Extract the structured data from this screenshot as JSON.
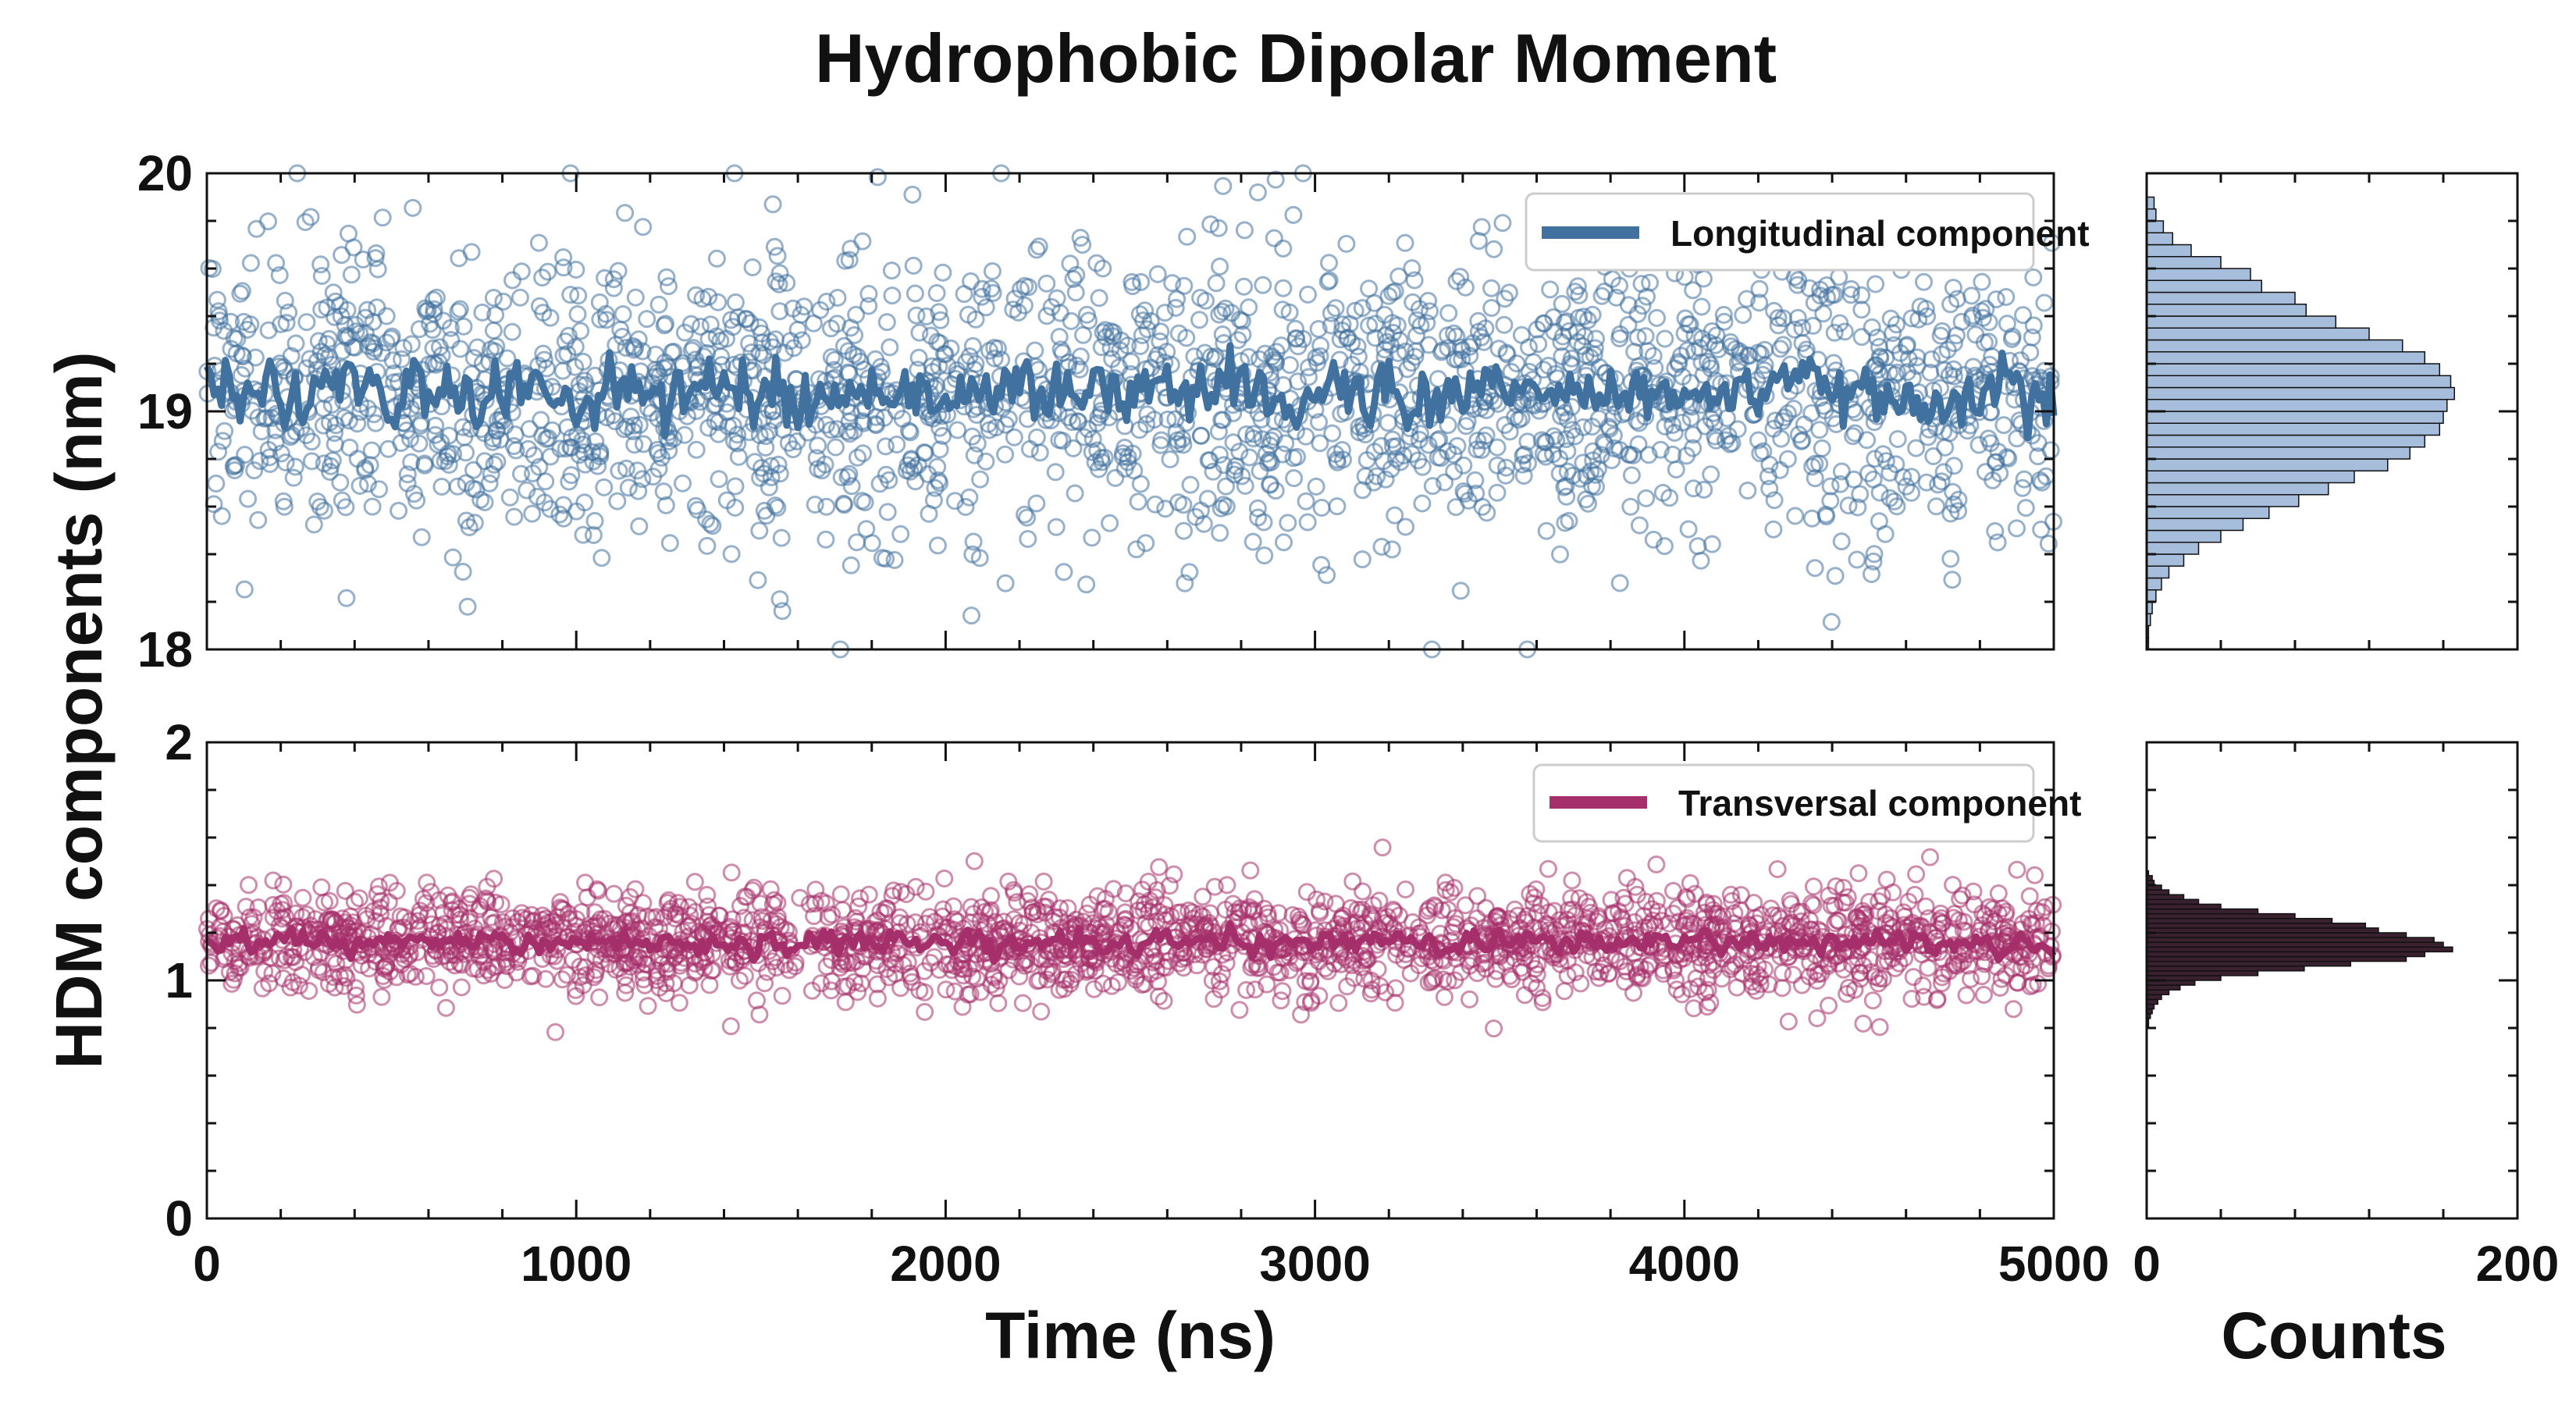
{
  "chart_data": {
    "title": "Hydrophobic Dipolar Moment",
    "ylabel": "HDM components (nm)",
    "xlabel": "Time (ns)",
    "hist_xlabel": "Counts",
    "colors": {
      "longitudinal": "#41719f",
      "transversal": "#a52f6a",
      "hist_top": "#a6bedb",
      "hist_bottom": "#3a2130"
    },
    "panels": [
      {
        "type": "scatter+line",
        "key": "longitudinal",
        "legend": "Longitudinal component",
        "xlim": [
          0,
          5000
        ],
        "ylim": [
          18,
          20
        ],
        "yticks": [
          "18",
          "19",
          "20"
        ],
        "xticks": [],
        "scatter": {
          "n": 2200,
          "mean": 19.08,
          "std": 0.3,
          "x_range": [
            0,
            5000
          ]
        },
        "line": {
          "points": 500,
          "mean": 19.08,
          "std": 0.1
        }
      },
      {
        "type": "scatter+line",
        "key": "transversal",
        "legend": "Transversal component",
        "xlim": [
          0,
          5000
        ],
        "ylim": [
          0,
          2
        ],
        "yticks": [
          "0",
          "1",
          "2"
        ],
        "xticks": [
          "0",
          "1000",
          "2000",
          "3000",
          "4000",
          "5000"
        ],
        "scatter": {
          "n": 2200,
          "mean": 1.16,
          "std": 0.11,
          "x_range": [
            0,
            5000
          ]
        },
        "line": {
          "points": 500,
          "mean": 1.16,
          "std": 0.035
        }
      }
    ],
    "histograms": [
      {
        "type": "bar",
        "key": "hist_top",
        "orientation": "horizontal",
        "xlim": [
          0,
          200
        ],
        "xticks": [],
        "bin_edges": [
          18.0,
          18.05,
          18.1,
          18.15,
          18.2,
          18.25,
          18.3,
          18.35,
          18.4,
          18.45,
          18.5,
          18.55,
          18.6,
          18.65,
          18.7,
          18.75,
          18.8,
          18.85,
          18.9,
          18.95,
          19.0,
          19.05,
          19.1,
          19.15,
          19.2,
          19.25,
          19.3,
          19.35,
          19.4,
          19.45,
          19.5,
          19.55,
          19.6,
          19.65,
          19.7,
          19.75,
          19.8,
          19.85,
          19.9
        ],
        "counts": [
          1,
          1,
          2,
          3,
          5,
          8,
          12,
          20,
          28,
          40,
          52,
          66,
          82,
          98,
          112,
          130,
          142,
          150,
          158,
          160,
          162,
          166,
          164,
          158,
          150,
          138,
          120,
          102,
          86,
          80,
          62,
          56,
          40,
          24,
          14,
          9,
          5,
          4
        ]
      },
      {
        "type": "bar",
        "key": "hist_bottom",
        "orientation": "horizontal",
        "xlim": [
          0,
          200
        ],
        "xticks": [
          "0",
          "200"
        ],
        "bin_edges": [
          0.8,
          0.82,
          0.84,
          0.86,
          0.88,
          0.9,
          0.92,
          0.94,
          0.96,
          0.98,
          1.0,
          1.02,
          1.04,
          1.06,
          1.08,
          1.1,
          1.12,
          1.14,
          1.16,
          1.18,
          1.2,
          1.22,
          1.24,
          1.26,
          1.28,
          1.3,
          1.32,
          1.34,
          1.36,
          1.38,
          1.4,
          1.42,
          1.44,
          1.46
        ],
        "counts": [
          1,
          1,
          2,
          3,
          4,
          6,
          8,
          12,
          18,
          26,
          40,
          60,
          85,
          110,
          140,
          150,
          165,
          160,
          155,
          140,
          125,
          118,
          100,
          80,
          60,
          40,
          28,
          20,
          12,
          8,
          4,
          3,
          1
        ]
      }
    ]
  }
}
